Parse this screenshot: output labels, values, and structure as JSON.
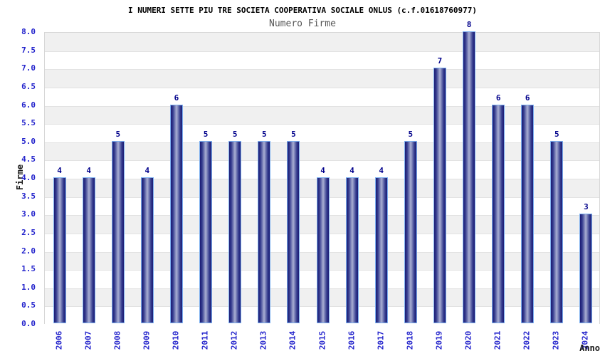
{
  "header": {
    "title": "I NUMERI SETTE PIU TRE SOCIETA COOPERATIVA SOCIALE ONLUS (c.f.01618760977)",
    "subtitle": "Numero Firme"
  },
  "chart_data": {
    "type": "bar",
    "title": "Numero Firme",
    "categories": [
      "2006",
      "2007",
      "2008",
      "2009",
      "2010",
      "2011",
      "2012",
      "2013",
      "2014",
      "2015",
      "2016",
      "2017",
      "2018",
      "2019",
      "2020",
      "2021",
      "2022",
      "2023",
      "2024"
    ],
    "values": [
      4,
      4,
      5,
      4,
      6,
      5,
      5,
      5,
      5,
      4,
      4,
      4,
      5,
      7,
      8,
      6,
      6,
      5,
      3
    ],
    "bar_value_labels": [
      "4",
      "4",
      "5",
      "4",
      "6",
      "5",
      "5",
      "5",
      "5",
      "4",
      "4",
      "4",
      "5",
      "7",
      "8",
      "6",
      "6",
      "5",
      "3"
    ],
    "xlabel": "Anno",
    "ylabel": "Firme",
    "ylim": [
      0,
      8
    ],
    "ytick_step": 0.5,
    "ytick_labels": [
      "0.0",
      "0.5",
      "1.0",
      "1.5",
      "2.0",
      "2.5",
      "3.0",
      "3.5",
      "4.0",
      "4.5",
      "5.0",
      "5.5",
      "6.0",
      "6.5",
      "7.0",
      "7.5",
      "8.0"
    ],
    "legend": false,
    "grid": "horizontal alternating bands every 0.5"
  },
  "colors": {
    "title": "#000000",
    "subtitle": "#555555",
    "axis_label": "#1a1a1a",
    "tick_label": "#2323cc",
    "value_label": "#00008b",
    "bar_dark": "#1b1b74",
    "bar_mid": "#343b8e",
    "bar_light": "#a9afd3",
    "bar_border": "#7db0f0",
    "band_gray": "#f0f0f0",
    "band_white": "#ffffff",
    "gridline": "#e2e2e2",
    "plot_border": "#d6d6d6"
  }
}
